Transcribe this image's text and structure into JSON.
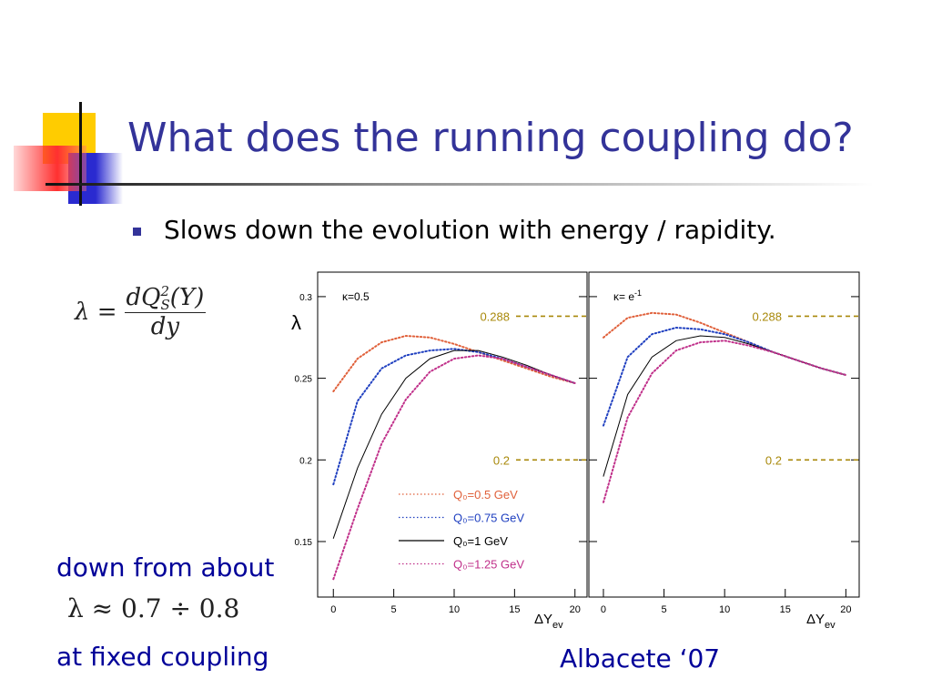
{
  "slide": {
    "title": "What does the running coupling do?",
    "bullets": [
      "Slows down the evolution with energy / rapidity."
    ],
    "formula": {
      "lhs": "λ =",
      "numerator": "dQ",
      "sub": "S",
      "sup": "2",
      "arg": "(Y)",
      "denominator": "dy"
    },
    "side_text": [
      "down from about",
      "λ ≈ 0.7 ÷ 0.8",
      "at fixed coupling"
    ],
    "citation": "Albacete ‘07"
  },
  "chart_data": [
    {
      "type": "line",
      "title": "κ=0.5",
      "y_label": "λ",
      "x_label": "ΔY",
      "x_label_sub": "ev",
      "x": [
        0,
        2,
        4,
        6,
        8,
        10,
        12,
        14,
        16,
        18,
        20
      ],
      "xlim": [
        -1.3,
        21
      ],
      "xticks": [
        0,
        5,
        10,
        15,
        20
      ],
      "ylim": [
        0.116,
        0.315
      ],
      "yticks": [
        0.15,
        0.2,
        0.25,
        0.3
      ],
      "reference_lines": [
        0.288,
        0.2
      ],
      "legend": "bottom-center",
      "series": [
        {
          "name": "Q₀=0.5 GeV",
          "color": "#e0603a",
          "style": "dotted",
          "values": [
            0.242,
            0.262,
            0.272,
            0.276,
            0.275,
            0.271,
            0.266,
            0.261,
            0.256,
            0.251,
            0.247
          ]
        },
        {
          "name": "Q₀=0.75 GeV",
          "color": "#2040c0",
          "style": "dotted",
          "values": [
            0.185,
            0.236,
            0.256,
            0.264,
            0.267,
            0.268,
            0.266,
            0.262,
            0.257,
            0.252,
            0.247
          ]
        },
        {
          "name": "Q₀=1 GeV",
          "color": "#000000",
          "style": "solid",
          "values": [
            0.152,
            0.195,
            0.228,
            0.25,
            0.262,
            0.267,
            0.267,
            0.263,
            0.258,
            0.252,
            0.247
          ]
        },
        {
          "name": "Q₀=1.25 GeV",
          "color": "#c0308a",
          "style": "dotted",
          "values": [
            0.127,
            0.17,
            0.21,
            0.237,
            0.254,
            0.262,
            0.264,
            0.262,
            0.257,
            0.252,
            0.247
          ]
        }
      ]
    },
    {
      "type": "line",
      "title": "κ= e",
      "title_sup": "-1",
      "x_label": "ΔY",
      "x_label_sub": "ev",
      "x": [
        0,
        2,
        4,
        6,
        8,
        10,
        12,
        14,
        16,
        18,
        20
      ],
      "xlim": [
        -1.2,
        21.1
      ],
      "xticks": [
        0,
        5,
        10,
        15,
        20
      ],
      "ylim": [
        0.116,
        0.315
      ],
      "yticks": [
        0.15,
        0.2,
        0.25,
        0.3
      ],
      "reference_lines": [
        0.288,
        0.2
      ],
      "series": [
        {
          "color": "#e0603a",
          "style": "dotted",
          "values": [
            0.275,
            0.287,
            0.29,
            0.289,
            0.284,
            0.278,
            0.272,
            0.266,
            0.261,
            0.256,
            0.252
          ]
        },
        {
          "color": "#2040c0",
          "style": "dotted",
          "values": [
            0.221,
            0.263,
            0.277,
            0.281,
            0.28,
            0.277,
            0.272,
            0.266,
            0.261,
            0.256,
            0.252
          ]
        },
        {
          "color": "#000000",
          "style": "solid",
          "values": [
            0.19,
            0.24,
            0.263,
            0.273,
            0.276,
            0.275,
            0.271,
            0.266,
            0.261,
            0.256,
            0.252
          ]
        },
        {
          "color": "#c0308a",
          "style": "dotted",
          "values": [
            0.174,
            0.226,
            0.253,
            0.267,
            0.272,
            0.273,
            0.27,
            0.266,
            0.261,
            0.256,
            0.252
          ]
        }
      ]
    }
  ]
}
